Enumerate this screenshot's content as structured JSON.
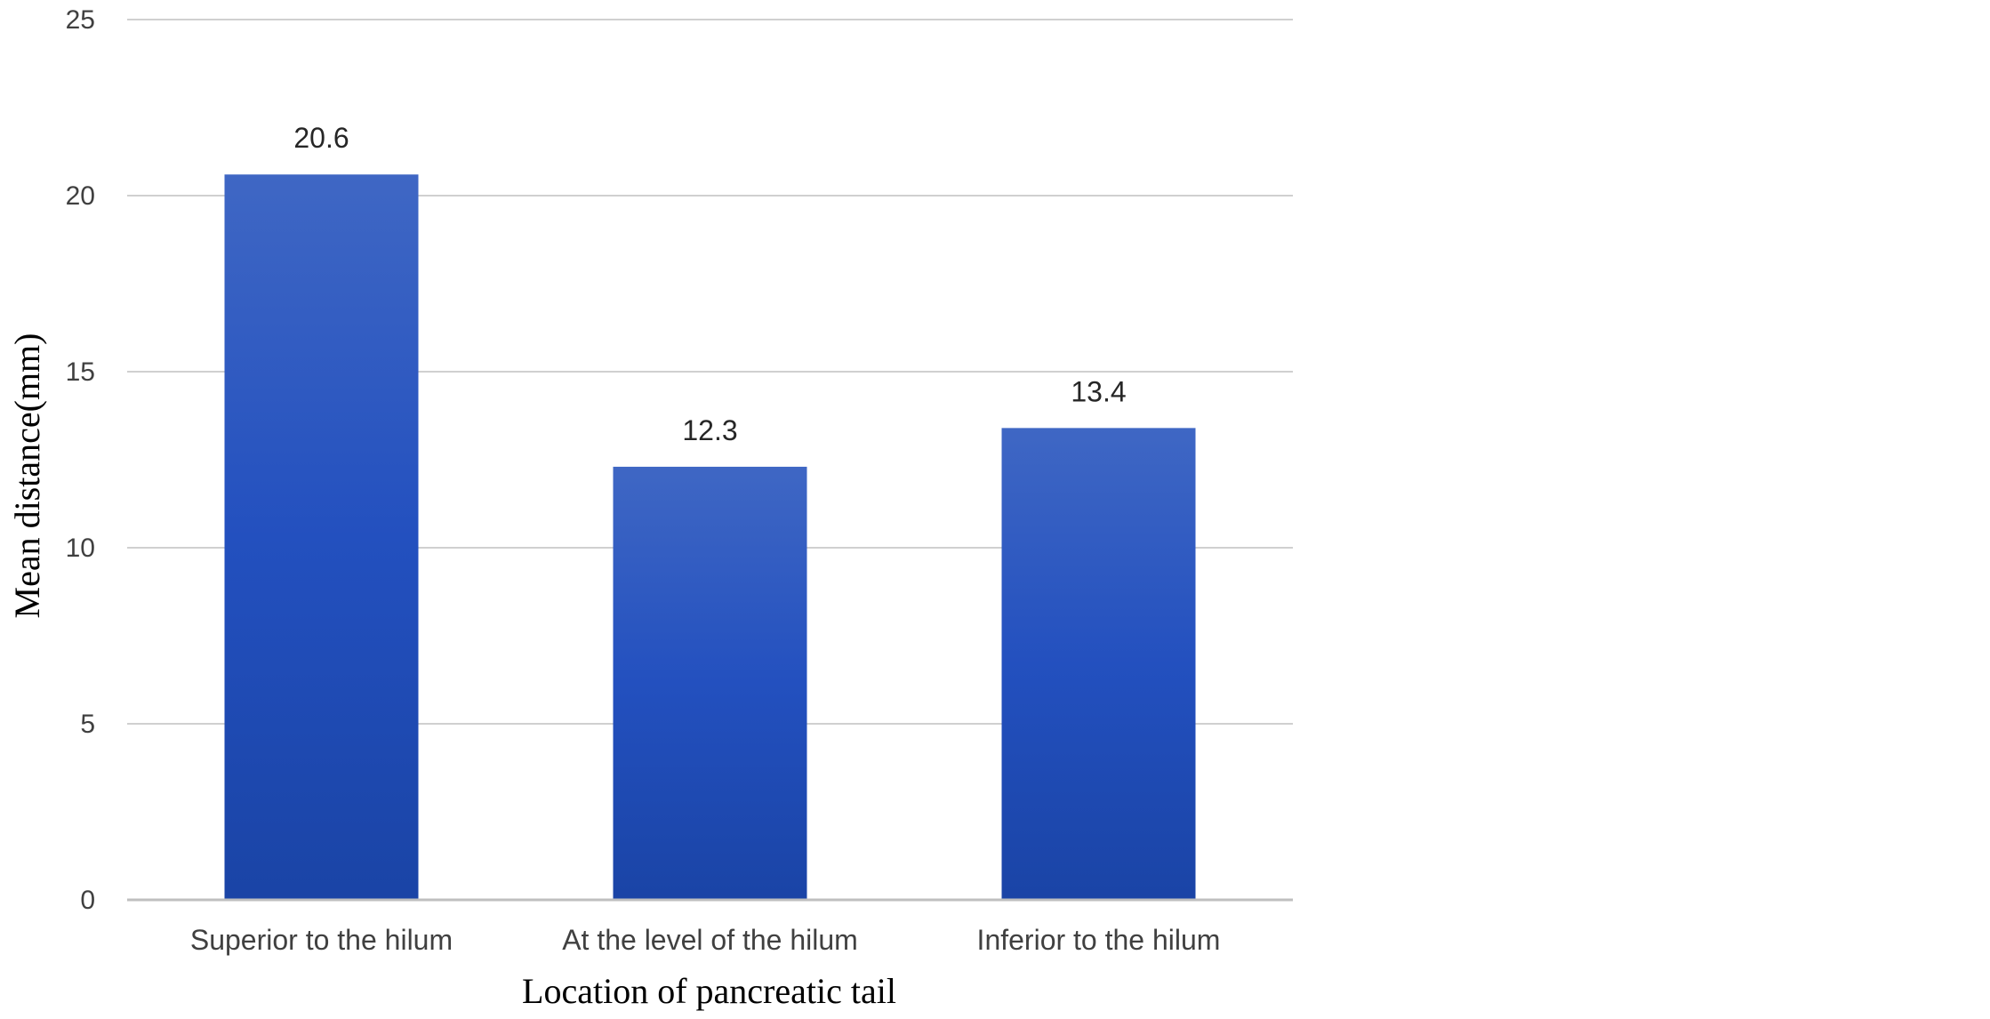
{
  "chart_data": {
    "type": "bar",
    "categories": [
      "Superior to the hilum",
      "At the level of the hilum",
      "Inferior to the hilum"
    ],
    "values": [
      20.6,
      12.3,
      13.4
    ],
    "data_labels": [
      "20.6",
      "12.3",
      "13.4"
    ],
    "xlabel": "Location of pancreatic tail",
    "ylabel": "Mean distance(mm)",
    "ylim": [
      0,
      25
    ],
    "yticks": [
      "0",
      "5",
      "10",
      "15",
      "20",
      "25"
    ],
    "grid": true,
    "legend": "none",
    "colors": {
      "bar_top": "#3f67c4",
      "bar_mid": "#2350bf",
      "bar_bottom": "#1a44a6",
      "grid": "#d0d0d0"
    }
  }
}
